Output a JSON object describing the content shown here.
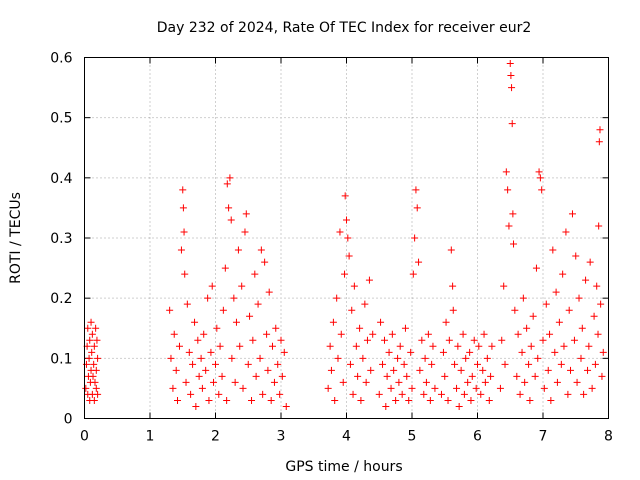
{
  "chart_data": {
    "type": "scatter",
    "title": "Day 232 of 2024, Rate Of TEC Index for receiver eur2",
    "xlabel": "GPS time / hours",
    "ylabel": "ROTI / TECUs",
    "xlim": [
      0,
      8
    ],
    "ylim": [
      0,
      0.6
    ],
    "x_ticks": [
      0,
      1,
      2,
      3,
      4,
      5,
      6,
      7,
      8
    ],
    "x_tick_labels": [
      "0",
      "1",
      "2",
      "3",
      "4",
      "5",
      "6",
      "7",
      "8"
    ],
    "y_ticks": [
      0,
      0.1,
      0.2,
      0.3,
      0.4,
      0.5,
      0.6
    ],
    "y_tick_labels": [
      "0",
      "0.1",
      "0.2",
      "0.3",
      "0.4",
      "0.5",
      "0.6"
    ],
    "grid": true,
    "marker": "+",
    "marker_color": "#ff0000",
    "series": [
      {
        "name": "ROTI",
        "points": [
          [
            0.02,
            0.05
          ],
          [
            0.03,
            0.09
          ],
          [
            0.04,
            0.12
          ],
          [
            0.05,
            0.04
          ],
          [
            0.05,
            0.15
          ],
          [
            0.06,
            0.07
          ],
          [
            0.07,
            0.1
          ],
          [
            0.08,
            0.03
          ],
          [
            0.08,
            0.13
          ],
          [
            0.09,
            0.06
          ],
          [
            0.1,
            0.16
          ],
          [
            0.1,
            0.08
          ],
          [
            0.11,
            0.11
          ],
          [
            0.12,
            0.04
          ],
          [
            0.12,
            0.14
          ],
          [
            0.13,
            0.07
          ],
          [
            0.14,
            0.09
          ],
          [
            0.15,
            0.03
          ],
          [
            0.15,
            0.12
          ],
          [
            0.16,
            0.06
          ],
          [
            0.17,
            0.15
          ],
          [
            0.18,
            0.08
          ],
          [
            0.18,
            0.05
          ],
          [
            0.19,
            0.13
          ],
          [
            0.2,
            0.1
          ],
          [
            0.2,
            0.04
          ],
          [
            1.3,
            0.18
          ],
          [
            1.32,
            0.1
          ],
          [
            1.35,
            0.05
          ],
          [
            1.37,
            0.14
          ],
          [
            1.4,
            0.08
          ],
          [
            1.42,
            0.03
          ],
          [
            1.45,
            0.12
          ],
          [
            1.48,
            0.28
          ],
          [
            1.5,
            0.38
          ],
          [
            1.51,
            0.35
          ],
          [
            1.52,
            0.31
          ],
          [
            1.53,
            0.24
          ],
          [
            1.55,
            0.06
          ],
          [
            1.57,
            0.19
          ],
          [
            1.6,
            0.11
          ],
          [
            1.62,
            0.04
          ],
          [
            1.65,
            0.09
          ],
          [
            1.68,
            0.16
          ],
          [
            1.7,
            0.02
          ],
          [
            1.73,
            0.13
          ],
          [
            1.75,
            0.07
          ],
          [
            1.78,
            0.1
          ],
          [
            1.8,
            0.05
          ],
          [
            1.82,
            0.14
          ],
          [
            1.85,
            0.08
          ],
          [
            1.88,
            0.2
          ],
          [
            1.9,
            0.03
          ],
          [
            1.93,
            0.11
          ],
          [
            1.95,
            0.22
          ],
          [
            1.97,
            0.06
          ],
          [
            2.0,
            0.09
          ],
          [
            2.02,
            0.15
          ],
          [
            2.05,
            0.04
          ],
          [
            2.07,
            0.12
          ],
          [
            2.1,
            0.07
          ],
          [
            2.12,
            0.18
          ],
          [
            2.15,
            0.25
          ],
          [
            2.17,
            0.03
          ],
          [
            2.18,
            0.39
          ],
          [
            2.2,
            0.35
          ],
          [
            2.22,
            0.4
          ],
          [
            2.24,
            0.33
          ],
          [
            2.25,
            0.1
          ],
          [
            2.28,
            0.2
          ],
          [
            2.3,
            0.06
          ],
          [
            2.32,
            0.16
          ],
          [
            2.35,
            0.28
          ],
          [
            2.37,
            0.12
          ],
          [
            2.4,
            0.22
          ],
          [
            2.42,
            0.05
          ],
          [
            2.45,
            0.31
          ],
          [
            2.47,
            0.34
          ],
          [
            2.5,
            0.09
          ],
          [
            2.52,
            0.17
          ],
          [
            2.55,
            0.03
          ],
          [
            2.57,
            0.13
          ],
          [
            2.6,
            0.24
          ],
          [
            2.62,
            0.07
          ],
          [
            2.65,
            0.19
          ],
          [
            2.68,
            0.1
          ],
          [
            2.7,
            0.28
          ],
          [
            2.72,
            0.04
          ],
          [
            2.75,
            0.26
          ],
          [
            2.78,
            0.14
          ],
          [
            2.8,
            0.08
          ],
          [
            2.82,
            0.21
          ],
          [
            2.85,
            0.03
          ],
          [
            2.87,
            0.12
          ],
          [
            2.9,
            0.06
          ],
          [
            2.92,
            0.15
          ],
          [
            2.95,
            0.09
          ],
          [
            2.98,
            0.04
          ],
          [
            3.0,
            0.13
          ],
          [
            3.02,
            0.07
          ],
          [
            3.05,
            0.11
          ],
          [
            3.08,
            0.02
          ],
          [
            3.72,
            0.05
          ],
          [
            3.75,
            0.12
          ],
          [
            3.77,
            0.08
          ],
          [
            3.8,
            0.16
          ],
          [
            3.82,
            0.03
          ],
          [
            3.85,
            0.2
          ],
          [
            3.87,
            0.1
          ],
          [
            3.9,
            0.31
          ],
          [
            3.92,
            0.14
          ],
          [
            3.95,
            0.06
          ],
          [
            3.97,
            0.24
          ],
          [
            3.98,
            0.37
          ],
          [
            4.0,
            0.33
          ],
          [
            4.02,
            0.3
          ],
          [
            4.04,
            0.27
          ],
          [
            4.06,
            0.09
          ],
          [
            4.08,
            0.18
          ],
          [
            4.1,
            0.04
          ],
          [
            4.12,
            0.22
          ],
          [
            4.15,
            0.12
          ],
          [
            4.17,
            0.07
          ],
          [
            4.2,
            0.15
          ],
          [
            4.22,
            0.03
          ],
          [
            4.25,
            0.1
          ],
          [
            4.28,
            0.19
          ],
          [
            4.3,
            0.06
          ],
          [
            4.32,
            0.13
          ],
          [
            4.35,
            0.23
          ],
          [
            4.37,
            0.08
          ],
          [
            4.4,
            0.14
          ],
          [
            4.5,
            0.04
          ],
          [
            4.52,
            0.16
          ],
          [
            4.55,
            0.09
          ],
          [
            4.58,
            0.13
          ],
          [
            4.6,
            0.02
          ],
          [
            4.62,
            0.07
          ],
          [
            4.65,
            0.11
          ],
          [
            4.68,
            0.05
          ],
          [
            4.7,
            0.14
          ],
          [
            4.72,
            0.08
          ],
          [
            4.75,
            0.03
          ],
          [
            4.78,
            0.1
          ],
          [
            4.8,
            0.06
          ],
          [
            4.82,
            0.12
          ],
          [
            4.85,
            0.04
          ],
          [
            4.88,
            0.09
          ],
          [
            4.9,
            0.15
          ],
          [
            4.92,
            0.07
          ],
          [
            4.95,
            0.03
          ],
          [
            4.98,
            0.11
          ],
          [
            5.0,
            0.05
          ],
          [
            5.02,
            0.24
          ],
          [
            5.04,
            0.3
          ],
          [
            5.06,
            0.38
          ],
          [
            5.08,
            0.35
          ],
          [
            5.1,
            0.26
          ],
          [
            5.12,
            0.08
          ],
          [
            5.15,
            0.13
          ],
          [
            5.18,
            0.04
          ],
          [
            5.2,
            0.1
          ],
          [
            5.22,
            0.06
          ],
          [
            5.25,
            0.14
          ],
          [
            5.28,
            0.03
          ],
          [
            5.3,
            0.09
          ],
          [
            5.32,
            0.12
          ],
          [
            5.35,
            0.05
          ],
          [
            5.45,
            0.04
          ],
          [
            5.48,
            0.11
          ],
          [
            5.5,
            0.07
          ],
          [
            5.52,
            0.16
          ],
          [
            5.55,
            0.03
          ],
          [
            5.57,
            0.13
          ],
          [
            5.6,
            0.28
          ],
          [
            5.62,
            0.22
          ],
          [
            5.63,
            0.18
          ],
          [
            5.65,
            0.09
          ],
          [
            5.68,
            0.05
          ],
          [
            5.7,
            0.12
          ],
          [
            5.72,
            0.02
          ],
          [
            5.75,
            0.08
          ],
          [
            5.78,
            0.14
          ],
          [
            5.8,
            0.04
          ],
          [
            5.82,
            0.1
          ],
          [
            5.85,
            0.06
          ],
          [
            5.88,
            0.11
          ],
          [
            5.9,
            0.03
          ],
          [
            5.92,
            0.07
          ],
          [
            5.95,
            0.13
          ],
          [
            5.98,
            0.05
          ],
          [
            6.0,
            0.09
          ],
          [
            6.02,
            0.12
          ],
          [
            6.05,
            0.04
          ],
          [
            6.08,
            0.08
          ],
          [
            6.1,
            0.14
          ],
          [
            6.12,
            0.06
          ],
          [
            6.15,
            0.1
          ],
          [
            6.18,
            0.03
          ],
          [
            6.2,
            0.07
          ],
          [
            6.22,
            0.12
          ],
          [
            6.35,
            0.05
          ],
          [
            6.37,
            0.13
          ],
          [
            6.4,
            0.22
          ],
          [
            6.42,
            0.09
          ],
          [
            6.44,
            0.41
          ],
          [
            6.46,
            0.38
          ],
          [
            6.48,
            0.32
          ],
          [
            6.5,
            0.59
          ],
          [
            6.51,
            0.57
          ],
          [
            6.52,
            0.55
          ],
          [
            6.53,
            0.49
          ],
          [
            6.54,
            0.34
          ],
          [
            6.55,
            0.29
          ],
          [
            6.57,
            0.18
          ],
          [
            6.6,
            0.07
          ],
          [
            6.62,
            0.14
          ],
          [
            6.65,
            0.04
          ],
          [
            6.68,
            0.11
          ],
          [
            6.7,
            0.2
          ],
          [
            6.72,
            0.06
          ],
          [
            6.75,
            0.15
          ],
          [
            6.78,
            0.09
          ],
          [
            6.8,
            0.03
          ],
          [
            6.82,
            0.12
          ],
          [
            6.85,
            0.17
          ],
          [
            6.88,
            0.07
          ],
          [
            6.9,
            0.25
          ],
          [
            6.92,
            0.1
          ],
          [
            6.94,
            0.41
          ],
          [
            6.96,
            0.4
          ],
          [
            6.98,
            0.38
          ],
          [
            7.0,
            0.13
          ],
          [
            7.02,
            0.05
          ],
          [
            7.05,
            0.19
          ],
          [
            7.08,
            0.08
          ],
          [
            7.1,
            0.14
          ],
          [
            7.12,
            0.03
          ],
          [
            7.15,
            0.28
          ],
          [
            7.18,
            0.11
          ],
          [
            7.2,
            0.21
          ],
          [
            7.22,
            0.06
          ],
          [
            7.25,
            0.16
          ],
          [
            7.28,
            0.09
          ],
          [
            7.3,
            0.24
          ],
          [
            7.32,
            0.12
          ],
          [
            7.35,
            0.31
          ],
          [
            7.38,
            0.04
          ],
          [
            7.4,
            0.18
          ],
          [
            7.42,
            0.08
          ],
          [
            7.45,
            0.34
          ],
          [
            7.48,
            0.13
          ],
          [
            7.5,
            0.27
          ],
          [
            7.52,
            0.06
          ],
          [
            7.55,
            0.2
          ],
          [
            7.58,
            0.1
          ],
          [
            7.6,
            0.15
          ],
          [
            7.62,
            0.04
          ],
          [
            7.65,
            0.23
          ],
          [
            7.68,
            0.08
          ],
          [
            7.7,
            0.12
          ],
          [
            7.72,
            0.26
          ],
          [
            7.75,
            0.05
          ],
          [
            7.78,
            0.17
          ],
          [
            7.8,
            0.09
          ],
          [
            7.82,
            0.22
          ],
          [
            7.84,
            0.14
          ],
          [
            7.85,
            0.32
          ],
          [
            7.86,
            0.46
          ],
          [
            7.87,
            0.48
          ],
          [
            7.88,
            0.19
          ],
          [
            7.9,
            0.07
          ],
          [
            7.92,
            0.11
          ]
        ]
      }
    ]
  }
}
